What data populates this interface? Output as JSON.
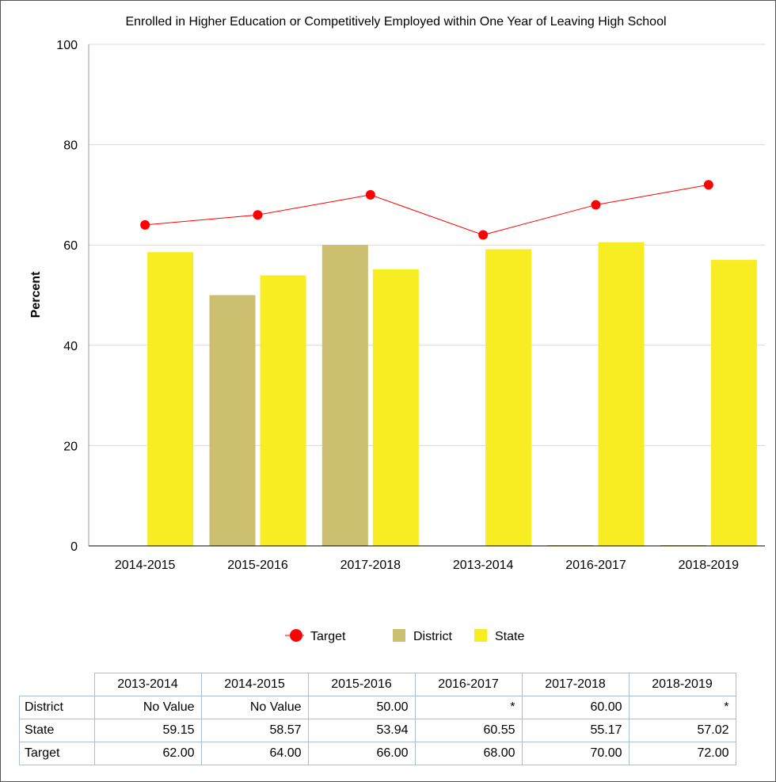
{
  "chart_data": {
    "type": "bar",
    "title": "Enrolled in Higher Education or Competitively Employed within One Year of Leaving High School",
    "ylabel": "Percent",
    "xlabel": "",
    "ylim": [
      0,
      100
    ],
    "yticks": [
      "0",
      "20",
      "40",
      "60",
      "80",
      "100"
    ],
    "grid": true,
    "legend_position": "bottom",
    "categories": [
      "2014-2015",
      "2015-2016",
      "2017-2018",
      "2013-2014",
      "2016-2017",
      "2018-2019"
    ],
    "series": [
      {
        "name": "District",
        "kind": "bar",
        "color": "#ccc070",
        "values": [
          null,
          50.0,
          60.0,
          null,
          0,
          0
        ]
      },
      {
        "name": "State",
        "kind": "bar",
        "color": "#f8ec22",
        "values": [
          58.57,
          53.94,
          55.17,
          59.15,
          60.55,
          57.02
        ]
      },
      {
        "name": "Target",
        "kind": "line",
        "color": "#ff0000",
        "values": [
          64.0,
          66.0,
          70.0,
          62.0,
          68.0,
          72.0
        ]
      }
    ],
    "legend": [
      "Target",
      "District",
      "State"
    ]
  },
  "table": {
    "columns": [
      "2013-2014",
      "2014-2015",
      "2015-2016",
      "2016-2017",
      "2017-2018",
      "2018-2019"
    ],
    "rows": [
      {
        "label": "District",
        "cells": [
          "No Value",
          "No Value",
          "50.00",
          "*",
          "60.00",
          "*"
        ]
      },
      {
        "label": "State",
        "cells": [
          "59.15",
          "58.57",
          "53.94",
          "60.55",
          "55.17",
          "57.02"
        ]
      },
      {
        "label": "Target",
        "cells": [
          "62.00",
          "64.00",
          "66.00",
          "68.00",
          "70.00",
          "72.00"
        ]
      }
    ]
  }
}
